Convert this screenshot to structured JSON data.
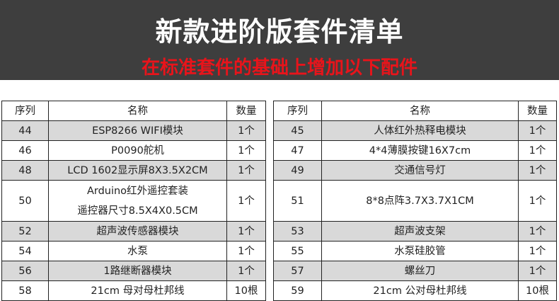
{
  "header": {
    "title": "新款进阶版套件清单",
    "subtitle": "在标准套件的基础上增加以下配件",
    "background_color": "#3e3e3e",
    "subtitle_color": "#e8141b"
  },
  "columns": {
    "index": "序列",
    "name": "名称",
    "qty": "数量"
  },
  "left_table": [
    {
      "no": "44",
      "name": "ESP8266 WIFI模块",
      "qty": "1个"
    },
    {
      "no": "46",
      "name": "P0090舵机",
      "qty": "1个"
    },
    {
      "no": "48",
      "name": "LCD 1602显示屏8X3.5X2CM",
      "qty": "1个"
    },
    {
      "no": "50",
      "name": "Arduino红外遥控套装",
      "name2": "遥控器尺寸8.5X4X0.5CM",
      "qty": "1个"
    },
    {
      "no": "52",
      "name": "超声波传感器模块",
      "qty": "1个"
    },
    {
      "no": "54",
      "name": "水泵",
      "qty": "1个"
    },
    {
      "no": "56",
      "name": "1路继断器模块",
      "qty": "1个"
    },
    {
      "no": "58",
      "name": "21cm 母对母杜邦线",
      "qty": "10根"
    }
  ],
  "right_table": [
    {
      "no": "45",
      "name": "人体红外热释电模块",
      "qty": "1个"
    },
    {
      "no": "47",
      "name": "4*4薄膜按键16X7cm",
      "qty": "1个"
    },
    {
      "no": "49",
      "name": "交通信号灯",
      "qty": "1个"
    },
    {
      "no": "51",
      "name": "8*8点阵3.7X3.7X1CM",
      "qty": "1个"
    },
    {
      "no": "53",
      "name": "超声波支架",
      "qty": "1个"
    },
    {
      "no": "55",
      "name": "水泵硅胶管",
      "qty": "1个"
    },
    {
      "no": "57",
      "name": "螺丝刀",
      "qty": "1个"
    },
    {
      "no": "59",
      "name": "21cm 公对母杜邦线",
      "qty": "10根"
    }
  ]
}
